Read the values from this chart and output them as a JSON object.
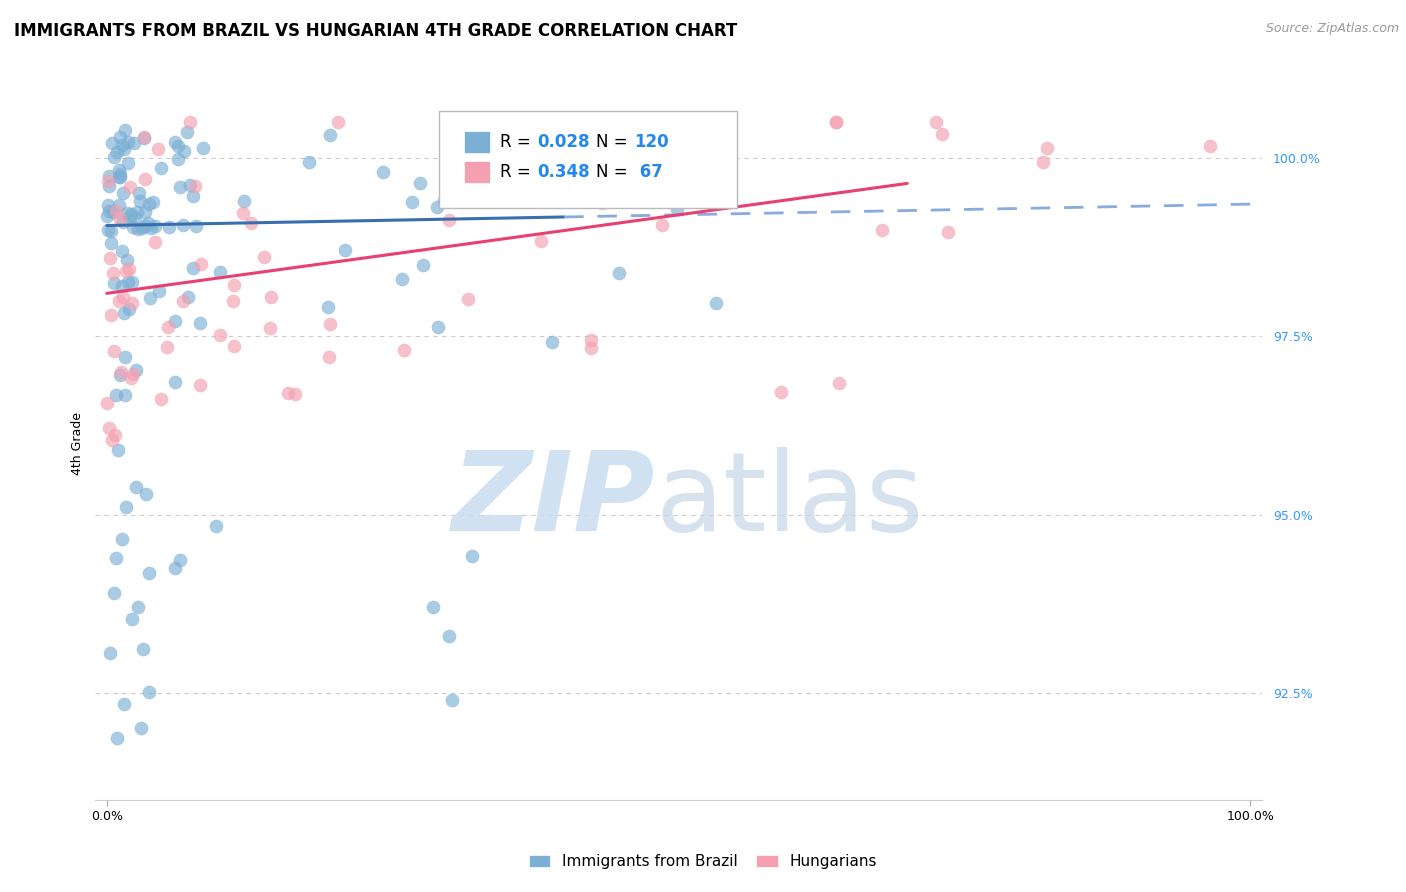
{
  "title": "IMMIGRANTS FROM BRAZIL VS HUNGARIAN 4TH GRADE CORRELATION CHART",
  "source": "Source: ZipAtlas.com",
  "ylabel": "4th Grade",
  "y_ticks": [
    92.5,
    95.0,
    97.5,
    100.0
  ],
  "y_tick_labels": [
    "92.5%",
    "95.0%",
    "97.5%",
    "100.0%"
  ],
  "x_range": [
    0.0,
    100.0
  ],
  "y_min": 91.0,
  "y_max": 101.0,
  "blue_R": 0.028,
  "blue_N": 120,
  "pink_R": 0.348,
  "pink_N": 67,
  "blue_color": "#7BAFD4",
  "pink_color": "#F4A0B0",
  "trend_blue_solid": "#3A6FAF",
  "trend_blue_dashed": "#88AADD",
  "trend_pink_solid": "#E84070",
  "legend_blue_label": "Immigrants from Brazil",
  "legend_pink_label": "Hungarians",
  "watermark_zip_color": "#C8DCF0",
  "watermark_atlas_color": "#C8DCF0",
  "title_fontsize": 12,
  "axis_label_fontsize": 9,
  "tick_fontsize": 9,
  "source_fontsize": 9,
  "legend_fontsize": 12
}
